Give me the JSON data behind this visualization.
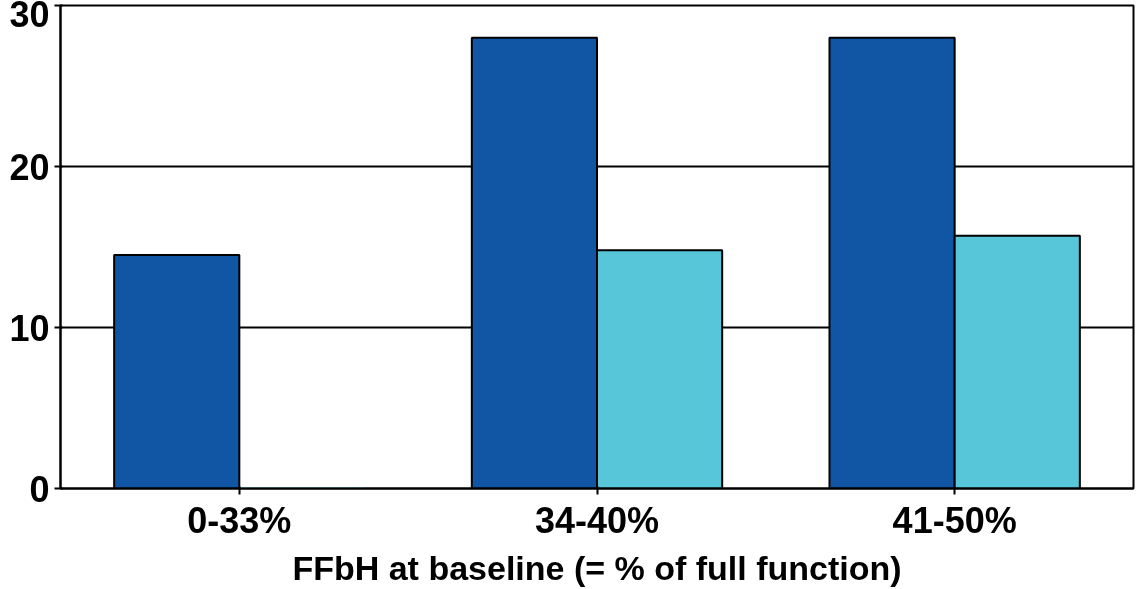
{
  "chart_data": {
    "type": "bar",
    "categories": [
      "0-33%",
      "34-40%",
      "41-50%"
    ],
    "xlabel": "FFbH at baseline (= % of full function)",
    "series": [
      {
        "color": "#1155a5",
        "values": [
          14.5,
          28,
          28
        ]
      },
      {
        "color": "#56c6d8",
        "values": [
          0,
          14.8,
          15.7
        ]
      }
    ],
    "ylim": [
      0,
      30
    ],
    "yticks": [
      0,
      10,
      20,
      30
    ],
    "grid": "y"
  }
}
